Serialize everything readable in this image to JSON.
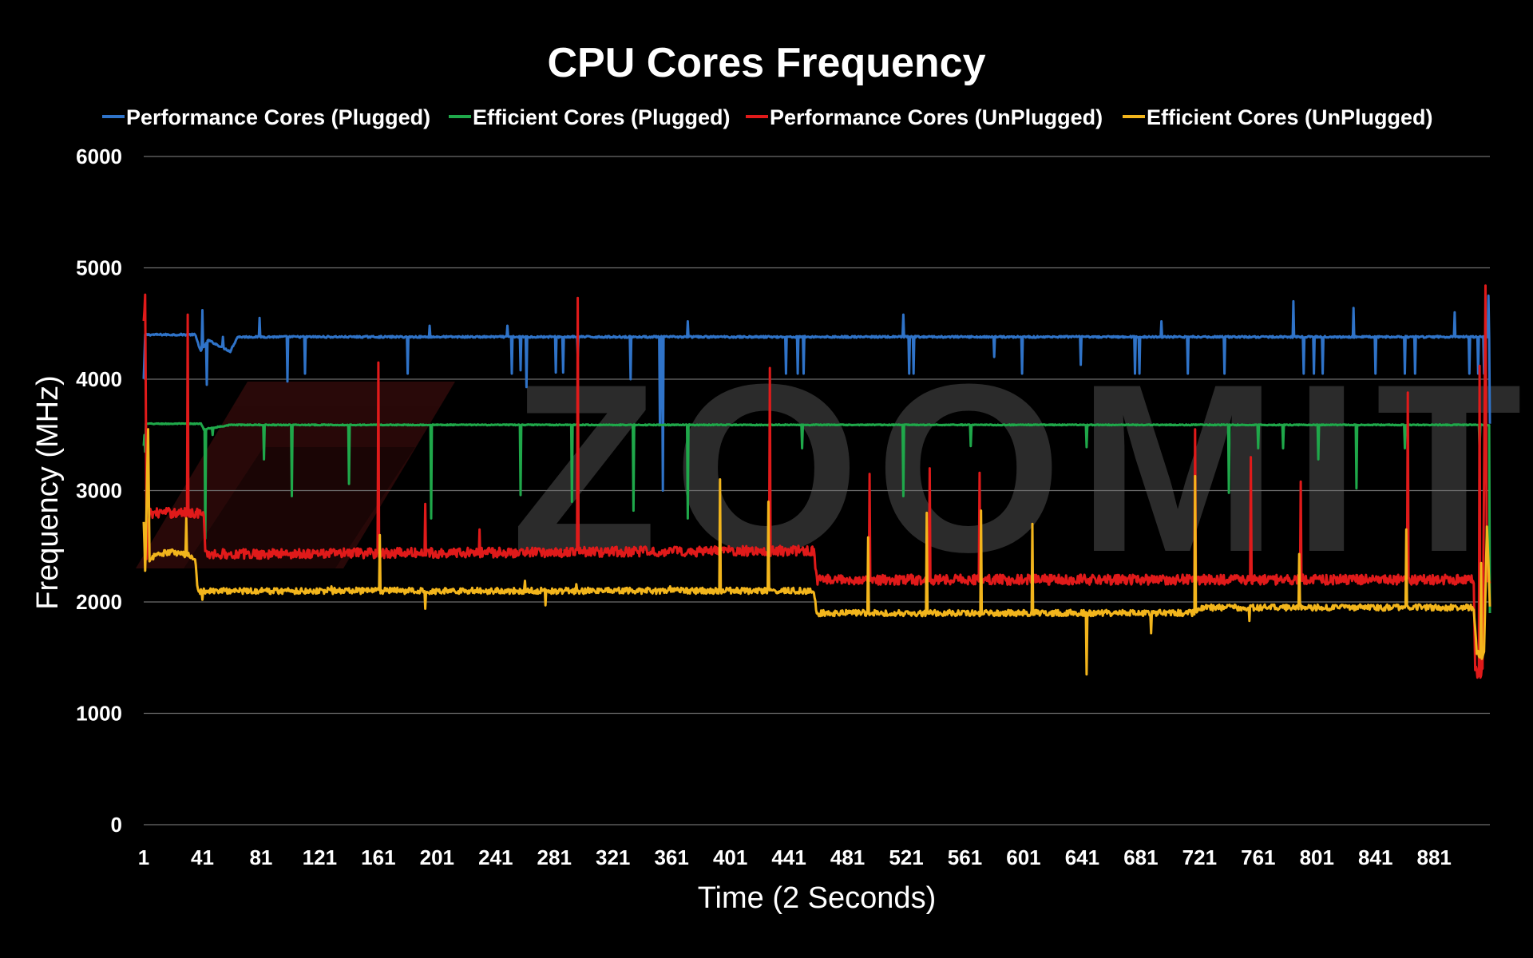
{
  "chart_data": {
    "type": "line",
    "title": "CPU Cores Frequency",
    "xlabel": "Time (2 Seconds)",
    "ylabel": "Frequency (MHz)",
    "watermark": "ZOOMIT",
    "xlim": [
      1,
      919
    ],
    "ylim": [
      0,
      6000
    ],
    "yticks": [
      0,
      1000,
      2000,
      3000,
      4000,
      5000,
      6000
    ],
    "xticks": [
      1,
      41,
      81,
      121,
      161,
      201,
      241,
      281,
      321,
      361,
      401,
      441,
      481,
      521,
      561,
      601,
      641,
      681,
      721,
      761,
      801,
      841,
      881
    ],
    "grid": true,
    "legend_position": "top",
    "series": [
      {
        "name": "Performance Cores (Plugged)",
        "color": "#2f73c8",
        "base": [
          [
            1,
            4000
          ],
          [
            2,
            4400
          ],
          [
            36,
            4400
          ],
          [
            40,
            4250
          ],
          [
            45,
            4350
          ],
          [
            60,
            4250
          ],
          [
            65,
            4380
          ],
          [
            919,
            4380
          ]
        ],
        "spikes": [
          [
            41,
            4620
          ],
          [
            44,
            3950
          ],
          [
            55,
            4380
          ],
          [
            80,
            4550
          ],
          [
            99,
            3980
          ],
          [
            111,
            4050
          ],
          [
            181,
            4050
          ],
          [
            196,
            4480
          ],
          [
            236,
            4380
          ],
          [
            249,
            4480
          ],
          [
            252,
            4050
          ],
          [
            258,
            4080
          ],
          [
            262,
            3930
          ],
          [
            282,
            4060
          ],
          [
            287,
            4060
          ],
          [
            297,
            4200
          ],
          [
            333,
            4000
          ],
          [
            353,
            3600
          ],
          [
            355,
            3000
          ],
          [
            372,
            4520
          ],
          [
            441,
            4380
          ],
          [
            439,
            4050
          ],
          [
            447,
            4050
          ],
          [
            451,
            4050
          ],
          [
            519,
            4580
          ],
          [
            523,
            4050
          ],
          [
            526,
            4050
          ],
          [
            581,
            4200
          ],
          [
            600,
            4050
          ],
          [
            640,
            4130
          ],
          [
            677,
            4050
          ],
          [
            680,
            4050
          ],
          [
            695,
            4520
          ],
          [
            713,
            4050
          ],
          [
            738,
            4050
          ],
          [
            785,
            4700
          ],
          [
            792,
            4050
          ],
          [
            799,
            4050
          ],
          [
            805,
            4050
          ],
          [
            826,
            4640
          ],
          [
            841,
            4050
          ],
          [
            861,
            4050
          ],
          [
            868,
            4050
          ],
          [
            895,
            4600
          ],
          [
            905,
            4050
          ],
          [
            911,
            4050
          ],
          [
            915,
            4050
          ],
          [
            918,
            4750
          ],
          [
            919,
            3600
          ]
        ]
      },
      {
        "name": "Efficient Cores (Plugged)",
        "color": "#1fa84a",
        "base": [
          [
            1,
            3400
          ],
          [
            2,
            3600
          ],
          [
            40,
            3600
          ],
          [
            42,
            3550
          ],
          [
            60,
            3590
          ],
          [
            919,
            3590
          ]
        ],
        "spikes": [
          [
            2,
            3350
          ],
          [
            43,
            2570
          ],
          [
            48,
            3500
          ],
          [
            83,
            3280
          ],
          [
            102,
            2950
          ],
          [
            141,
            3060
          ],
          [
            197,
            2750
          ],
          [
            258,
            2960
          ],
          [
            293,
            2900
          ],
          [
            335,
            2820
          ],
          [
            372,
            2750
          ],
          [
            450,
            3380
          ],
          [
            519,
            2950
          ],
          [
            565,
            3400
          ],
          [
            644,
            3390
          ],
          [
            741,
            2980
          ],
          [
            761,
            3380
          ],
          [
            778,
            3380
          ],
          [
            802,
            3280
          ],
          [
            828,
            3020
          ],
          [
            861,
            3380
          ],
          [
            912,
            3380
          ],
          [
            919,
            1900
          ]
        ]
      },
      {
        "name": "Performance Cores (UnPlugged)",
        "color": "#e01a1a",
        "base": [
          [
            1,
            4500
          ],
          [
            2,
            4720
          ],
          [
            3,
            2400
          ],
          [
            5,
            2800
          ],
          [
            40,
            2800
          ],
          [
            42,
            2760
          ],
          [
            43,
            2430
          ],
          [
            458,
            2460
          ],
          [
            460,
            2200
          ],
          [
            908,
            2200
          ],
          [
            909,
            1400
          ],
          [
            912,
            1300
          ],
          [
            914,
            1400
          ],
          [
            916,
            4800
          ],
          [
            917,
            2200
          ],
          [
            919,
            2200
          ]
        ],
        "spikes": [
          [
            31,
            4580
          ],
          [
            161,
            4150
          ],
          [
            193,
            2880
          ],
          [
            230,
            2650
          ],
          [
            297,
            4730
          ],
          [
            428,
            4100
          ],
          [
            496,
            3150
          ],
          [
            537,
            3200
          ],
          [
            571,
            3160
          ],
          [
            718,
            3550
          ],
          [
            756,
            3300
          ],
          [
            790,
            3080
          ],
          [
            863,
            3880
          ],
          [
            912,
            4120
          ]
        ]
      },
      {
        "name": "Efficient Cores (UnPlugged)",
        "color": "#f2b51c",
        "base": [
          [
            1,
            2700
          ],
          [
            2,
            2300
          ],
          [
            4,
            3550
          ],
          [
            5,
            2350
          ],
          [
            8,
            2420
          ],
          [
            20,
            2450
          ],
          [
            36,
            2400
          ],
          [
            38,
            2100
          ],
          [
            458,
            2100
          ],
          [
            460,
            1900
          ],
          [
            719,
            1900
          ],
          [
            720,
            1950
          ],
          [
            908,
            1950
          ],
          [
            910,
            1550
          ],
          [
            913,
            1500
          ],
          [
            915,
            1550
          ],
          [
            917,
            2700
          ],
          [
            919,
            1960
          ]
        ],
        "spikes": [
          [
            30,
            2750
          ],
          [
            41,
            2020
          ],
          [
            129,
            2140
          ],
          [
            162,
            2600
          ],
          [
            193,
            1940
          ],
          [
            261,
            2190
          ],
          [
            275,
            1970
          ],
          [
            296,
            2160
          ],
          [
            360,
            2140
          ],
          [
            394,
            3100
          ],
          [
            427,
            2900
          ],
          [
            495,
            2580
          ],
          [
            535,
            2800
          ],
          [
            572,
            2820
          ],
          [
            607,
            2700
          ],
          [
            644,
            1350
          ],
          [
            688,
            1720
          ],
          [
            718,
            3130
          ],
          [
            755,
            1830
          ],
          [
            789,
            2430
          ],
          [
            862,
            2650
          ],
          [
            913,
            2350
          ]
        ]
      }
    ]
  }
}
